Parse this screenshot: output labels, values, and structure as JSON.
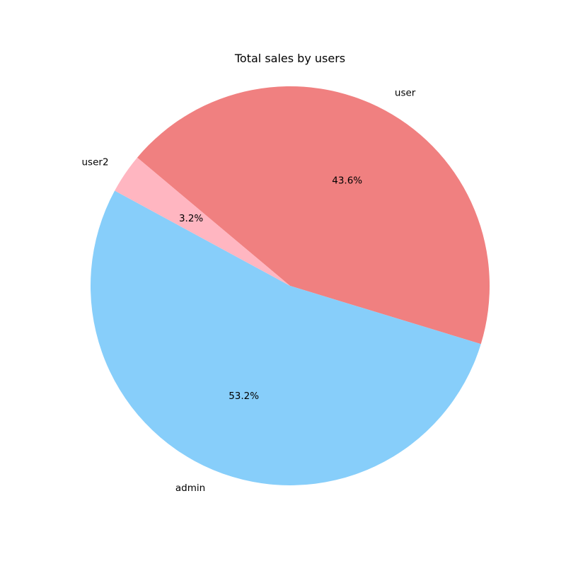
{
  "chart_data": {
    "type": "pie",
    "title": "Total sales by users",
    "slices": [
      {
        "label": "user",
        "percent": 43.6,
        "percent_label": "43.6%",
        "color": "#F08080"
      },
      {
        "label": "admin",
        "percent": 53.2,
        "percent_label": "53.2%",
        "color": "#87CEFA"
      },
      {
        "label": "user2",
        "percent": 3.2,
        "percent_label": "3.2%",
        "color": "#FFB6C1"
      }
    ],
    "start_angle_deg": 140,
    "direction": "clockwise"
  }
}
